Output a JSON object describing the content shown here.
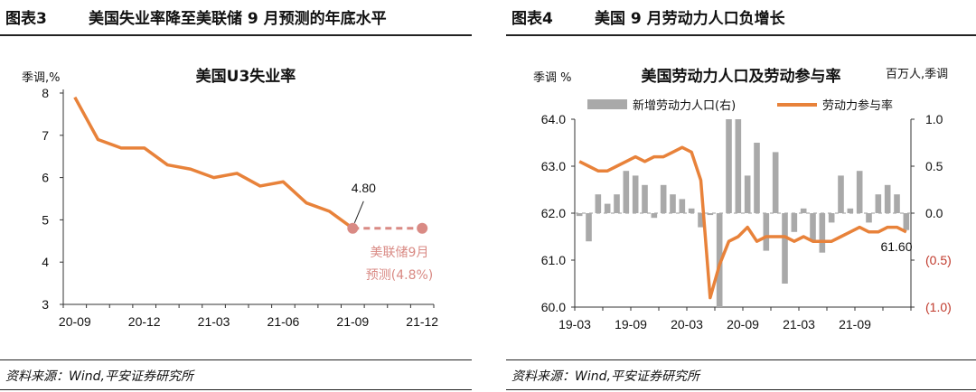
{
  "left": {
    "fig_no": "图表3",
    "fig_title": "美国失业率降至美联储 9 月预测的年底水平",
    "source": "资料来源：Wind,平安证券研究所",
    "chart_data": {
      "type": "line",
      "title": "美国U3失业率",
      "ylabel": "季调,%",
      "ylim": [
        3,
        8
      ],
      "yticks": [
        "3",
        "4",
        "5",
        "6",
        "7",
        "8"
      ],
      "xticks": [
        "20-09",
        "20-12",
        "21-03",
        "21-06",
        "21-09",
        "21-12"
      ],
      "x_index_of_ticks": [
        0,
        3,
        6,
        9,
        12,
        15
      ],
      "series": [
        {
          "values": [
            7.9,
            6.9,
            6.7,
            6.7,
            6.3,
            6.2,
            6.0,
            6.1,
            5.8,
            5.9,
            5.4,
            5.2,
            4.8
          ],
          "color": "#e8823a"
        }
      ],
      "forecast": {
        "x_index_start": 12,
        "x_index_end": 15,
        "value": 4.8,
        "color": "#d98a84"
      },
      "annotation_value": "4.80",
      "forecast_label_1": "美联储9月",
      "forecast_label_2": "预测(4.8%)"
    }
  },
  "right": {
    "fig_no": "图表4",
    "fig_title": "美国 9 月劳动力人口负增长",
    "source": "资料来源：Wind,平安证券研究所",
    "chart_data": {
      "type": "bar+line",
      "title": "美国劳动力人口及劳动参与率",
      "ylabel_left": "季调 %",
      "ylabel_right": "百万人,季调",
      "ylim_left": [
        60.0,
        64.0
      ],
      "ylim_right": [
        -1.0,
        1.0
      ],
      "yticks_left": [
        "60.0",
        "61.0",
        "62.0",
        "63.0",
        "64.0"
      ],
      "yticks_right": [
        "(1.0)",
        "(0.5)",
        "0.0",
        "0.5",
        "1.0"
      ],
      "xticks": [
        "19-03",
        "19-09",
        "20-03",
        "20-09",
        "21-03",
        "21-09"
      ],
      "x_index_of_ticks": [
        0,
        6,
        12,
        18,
        24,
        30
      ],
      "series": [
        {
          "name": "新增劳动力人口(右)",
          "type": "bar",
          "color": "#a9a9a9",
          "values": [
            -0.03,
            -0.3,
            0.2,
            0.1,
            0.2,
            0.45,
            0.4,
            0.3,
            -0.05,
            0.3,
            0.2,
            0.15,
            0.05,
            -0.15,
            -0.02,
            -2.9,
            3.2,
            1.0,
            0.4,
            0.75,
            -0.4,
            0.65,
            -0.75,
            -0.2,
            0.05,
            -0.3,
            -0.42,
            -0.1,
            0.4,
            0.05,
            0.45,
            -0.1,
            0.2,
            0.3,
            0.2,
            -0.18
          ]
        },
        {
          "name": "劳动力参与率",
          "type": "line",
          "color": "#e8823a",
          "values": [
            63.1,
            63.0,
            62.9,
            62.9,
            63.0,
            63.1,
            63.2,
            63.1,
            63.2,
            63.2,
            63.3,
            63.4,
            63.3,
            62.7,
            60.2,
            60.9,
            61.4,
            61.5,
            61.7,
            61.4,
            61.5,
            61.5,
            61.5,
            61.4,
            61.5,
            61.4,
            61.4,
            61.4,
            61.5,
            61.6,
            61.7,
            61.6,
            61.6,
            61.7,
            61.7,
            61.6
          ]
        }
      ],
      "annotation_value": "61.60"
    }
  }
}
